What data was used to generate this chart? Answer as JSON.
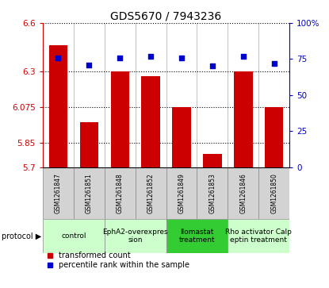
{
  "title": "GDS5670 / 7943236",
  "samples": [
    "GSM1261847",
    "GSM1261851",
    "GSM1261848",
    "GSM1261852",
    "GSM1261849",
    "GSM1261853",
    "GSM1261846",
    "GSM1261850"
  ],
  "bar_values": [
    6.46,
    5.98,
    6.3,
    6.27,
    6.075,
    5.78,
    6.3,
    6.075
  ],
  "dot_values": [
    76,
    71,
    76,
    77,
    76,
    70,
    77,
    72
  ],
  "ylim_left": [
    5.7,
    6.6
  ],
  "ylim_right": [
    0,
    100
  ],
  "yticks_left": [
    5.7,
    5.85,
    6.075,
    6.3,
    6.6
  ],
  "yticks_right": [
    0,
    25,
    50,
    75,
    100
  ],
  "ytick_labels_left": [
    "5.7",
    "5.85",
    "6.075",
    "6.3",
    "6.6"
  ],
  "ytick_labels_right": [
    "0",
    "25",
    "50",
    "75",
    "100%"
  ],
  "bar_color": "#cc0000",
  "dot_color": "#0000cc",
  "bar_bottom": 5.7,
  "dot_size": 25,
  "protocols": [
    {
      "label": "control",
      "start": 0,
      "end": 2,
      "color": "#ccffcc"
    },
    {
      "label": "EphA2-overexpres\nsion",
      "start": 2,
      "end": 4,
      "color": "#ccffcc"
    },
    {
      "label": "Ilomastat\ntreatment",
      "start": 4,
      "end": 6,
      "color": "#33cc33"
    },
    {
      "label": "Rho activator Calp\neptin treatment",
      "start": 6,
      "end": 8,
      "color": "#ccffcc"
    }
  ],
  "legend_items": [
    {
      "label": "transformed count",
      "color": "#cc0000",
      "marker": "s"
    },
    {
      "label": "percentile rank within the sample",
      "color": "#0000cc",
      "marker": "s"
    }
  ],
  "protocol_label": "protocol",
  "left_axis_color": "#cc0000",
  "right_axis_color": "#0000cc",
  "grid_color": "#000000",
  "grid_linestyle": ":",
  "grid_linewidth": 0.8,
  "bar_width": 0.6,
  "sample_box_color": "#d3d3d3",
  "title_fontsize": 10,
  "tick_fontsize": 7.5,
  "sample_fontsize": 5.5,
  "proto_fontsize": 6.5
}
